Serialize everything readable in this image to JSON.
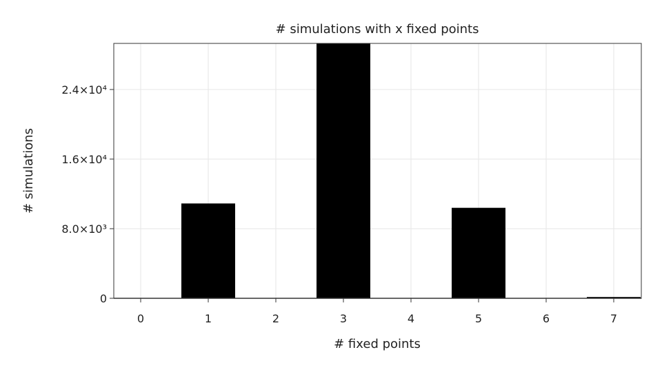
{
  "chart_data": {
    "type": "bar",
    "title": "# simulations with x fixed points",
    "xlabel": "# fixed points",
    "ylabel": "# simulations",
    "categories": [
      "0",
      "1",
      "2",
      "3",
      "4",
      "5",
      "6",
      "7"
    ],
    "values": [
      0,
      10900,
      0,
      29300,
      0,
      10400,
      0,
      150
    ],
    "ylim": [
      0,
      29300
    ],
    "yticks": [
      0,
      8000,
      16000,
      24000
    ],
    "ytick_labels": [
      "0",
      "8.0×10³",
      "1.6×10⁴",
      "2.4×10⁴"
    ],
    "grid": true,
    "bar_color": "#000000"
  }
}
